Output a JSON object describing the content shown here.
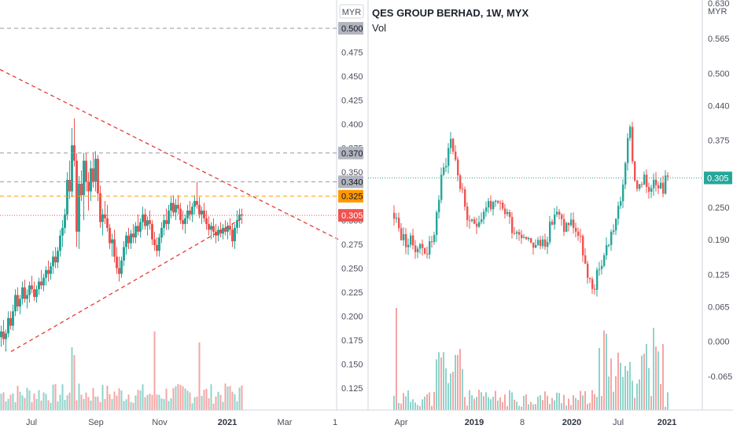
{
  "chart_data": [
    {
      "type": "candlestick",
      "panel": "left",
      "currency_badge": "MYR",
      "y_ticks": [
        "0.475",
        "0.450",
        "0.425",
        "0.400",
        "0.375",
        "0.350",
        "0.300",
        "0.275",
        "0.250",
        "0.225",
        "0.200",
        "0.175",
        "0.150",
        "0.125"
      ],
      "ylim": [
        0.1,
        0.52
      ],
      "x_ticks": [
        {
          "label": "Jul",
          "t": 40,
          "bold": false
        },
        {
          "label": "Sep",
          "t": 122,
          "bold": false
        },
        {
          "label": "Nov",
          "t": 203,
          "bold": false
        },
        {
          "label": "2021",
          "t": 289,
          "bold": true
        },
        {
          "label": "Mar",
          "t": 362,
          "bold": false
        },
        {
          "label": "1",
          "t": 426,
          "bold": false
        }
      ],
      "price_tags": [
        {
          "value": 0.5,
          "label": "0.500",
          "bg": "#b2b5be",
          "fg": "#131722",
          "line": "dashed-gray"
        },
        {
          "value": 0.37,
          "label": "0.370",
          "bg": "#b2b5be",
          "fg": "#131722",
          "line": "dashed-gray"
        },
        {
          "value": 0.34,
          "label": "0.340",
          "bg": "#b2b5be",
          "fg": "#131722",
          "line": "dashed-gray"
        },
        {
          "value": 0.325,
          "label": "0.325",
          "bg": "#ff9800",
          "fg": "#131722",
          "line": "dashed-orange"
        },
        {
          "value": 0.305,
          "label": "0.305",
          "bg": "#ef5350",
          "fg": "#ffffff",
          "line": "dotted-red"
        }
      ],
      "trendlines": [
        {
          "from": [
            0,
            0.457
          ],
          "to": [
            430,
            0.28
          ]
        },
        {
          "from": [
            14,
            0.163
          ],
          "to": [
            310,
            0.303
          ]
        }
      ],
      "candles": [
        [
          0,
          0.178,
          0.19,
          0.168,
          0.184
        ],
        [
          3,
          0.184,
          0.196,
          0.17,
          0.176
        ],
        [
          6,
          0.176,
          0.186,
          0.163,
          0.182
        ],
        [
          9,
          0.182,
          0.205,
          0.178,
          0.198
        ],
        [
          12,
          0.198,
          0.205,
          0.186,
          0.19
        ],
        [
          15,
          0.19,
          0.212,
          0.185,
          0.205
        ],
        [
          18,
          0.205,
          0.228,
          0.2,
          0.222
        ],
        [
          21,
          0.222,
          0.23,
          0.205,
          0.21
        ],
        [
          24,
          0.21,
          0.222,
          0.202,
          0.218
        ],
        [
          27,
          0.218,
          0.236,
          0.212,
          0.23
        ],
        [
          30,
          0.23,
          0.238,
          0.214,
          0.218
        ],
        [
          33,
          0.218,
          0.228,
          0.208,
          0.222
        ],
        [
          36,
          0.222,
          0.236,
          0.214,
          0.232
        ],
        [
          39,
          0.232,
          0.242,
          0.224,
          0.228
        ],
        [
          42,
          0.228,
          0.236,
          0.216,
          0.22
        ],
        [
          45,
          0.22,
          0.232,
          0.214,
          0.228
        ],
        [
          48,
          0.228,
          0.24,
          0.222,
          0.236
        ],
        [
          51,
          0.236,
          0.248,
          0.228,
          0.232
        ],
        [
          54,
          0.232,
          0.244,
          0.226,
          0.24
        ],
        [
          57,
          0.24,
          0.252,
          0.232,
          0.248
        ],
        [
          60,
          0.248,
          0.258,
          0.236,
          0.244
        ],
        [
          63,
          0.244,
          0.256,
          0.238,
          0.252
        ],
        [
          66,
          0.252,
          0.268,
          0.244,
          0.262
        ],
        [
          69,
          0.262,
          0.272,
          0.25,
          0.256
        ],
        [
          72,
          0.256,
          0.272,
          0.25,
          0.268
        ],
        [
          75,
          0.268,
          0.29,
          0.262,
          0.284
        ],
        [
          78,
          0.284,
          0.3,
          0.272,
          0.292
        ],
        [
          81,
          0.292,
          0.312,
          0.286,
          0.306
        ],
        [
          84,
          0.306,
          0.35,
          0.3,
          0.342
        ],
        [
          87,
          0.342,
          0.362,
          0.322,
          0.33
        ],
        [
          90,
          0.33,
          0.396,
          0.324,
          0.378
        ],
        [
          93,
          0.378,
          0.406,
          0.356,
          0.362
        ],
        [
          96,
          0.362,
          0.37,
          0.272,
          0.288
        ],
        [
          99,
          0.288,
          0.346,
          0.27,
          0.338
        ],
        [
          102,
          0.338,
          0.352,
          0.32,
          0.326
        ],
        [
          105,
          0.326,
          0.37,
          0.3,
          0.362
        ],
        [
          108,
          0.362,
          0.37,
          0.33,
          0.34
        ],
        [
          111,
          0.34,
          0.35,
          0.31,
          0.33
        ],
        [
          114,
          0.33,
          0.362,
          0.32,
          0.354
        ],
        [
          117,
          0.354,
          0.37,
          0.334,
          0.34
        ],
        [
          120,
          0.34,
          0.372,
          0.33,
          0.364
        ],
        [
          123,
          0.364,
          0.368,
          0.32,
          0.328
        ],
        [
          126,
          0.328,
          0.336,
          0.292,
          0.298
        ],
        [
          129,
          0.298,
          0.312,
          0.284,
          0.306
        ],
        [
          132,
          0.306,
          0.32,
          0.296,
          0.302
        ],
        [
          135,
          0.302,
          0.316,
          0.288,
          0.292
        ],
        [
          138,
          0.292,
          0.296,
          0.27,
          0.276
        ],
        [
          141,
          0.276,
          0.286,
          0.262,
          0.28
        ],
        [
          144,
          0.28,
          0.29,
          0.256,
          0.262
        ],
        [
          147,
          0.262,
          0.272,
          0.244,
          0.25
        ],
        [
          150,
          0.25,
          0.262,
          0.236,
          0.244
        ],
        [
          153,
          0.244,
          0.262,
          0.24,
          0.258
        ],
        [
          156,
          0.258,
          0.278,
          0.252,
          0.272
        ],
        [
          159,
          0.272,
          0.288,
          0.264,
          0.284
        ],
        [
          162,
          0.284,
          0.292,
          0.27,
          0.276
        ],
        [
          165,
          0.276,
          0.29,
          0.27,
          0.286
        ],
        [
          168,
          0.286,
          0.296,
          0.276,
          0.282
        ],
        [
          171,
          0.282,
          0.298,
          0.276,
          0.294
        ],
        [
          174,
          0.294,
          0.306,
          0.284,
          0.288
        ],
        [
          177,
          0.288,
          0.302,
          0.282,
          0.298
        ],
        [
          180,
          0.298,
          0.314,
          0.29,
          0.306
        ],
        [
          183,
          0.306,
          0.312,
          0.29,
          0.294
        ],
        [
          186,
          0.294,
          0.304,
          0.284,
          0.3
        ],
        [
          189,
          0.3,
          0.31,
          0.29,
          0.296
        ],
        [
          192,
          0.296,
          0.3,
          0.274,
          0.28
        ],
        [
          195,
          0.28,
          0.288,
          0.268,
          0.274
        ],
        [
          198,
          0.274,
          0.282,
          0.262,
          0.268
        ],
        [
          201,
          0.268,
          0.286,
          0.262,
          0.282
        ],
        [
          204,
          0.282,
          0.298,
          0.276,
          0.292
        ],
        [
          207,
          0.292,
          0.306,
          0.284,
          0.3
        ],
        [
          210,
          0.3,
          0.312,
          0.29,
          0.296
        ],
        [
          213,
          0.296,
          0.316,
          0.29,
          0.31
        ],
        [
          216,
          0.31,
          0.324,
          0.302,
          0.318
        ],
        [
          219,
          0.318,
          0.326,
          0.304,
          0.308
        ],
        [
          222,
          0.308,
          0.322,
          0.3,
          0.316
        ],
        [
          225,
          0.316,
          0.326,
          0.306,
          0.312
        ],
        [
          228,
          0.312,
          0.318,
          0.296,
          0.3
        ],
        [
          231,
          0.3,
          0.31,
          0.29,
          0.296
        ],
        [
          234,
          0.296,
          0.306,
          0.286,
          0.302
        ],
        [
          237,
          0.302,
          0.316,
          0.296,
          0.31
        ],
        [
          240,
          0.31,
          0.32,
          0.3,
          0.306
        ],
        [
          243,
          0.306,
          0.318,
          0.298,
          0.314
        ],
        [
          246,
          0.314,
          0.326,
          0.306,
          0.32
        ],
        [
          249,
          0.32,
          0.34,
          0.312,
          0.316
        ],
        [
          252,
          0.316,
          0.324,
          0.302,
          0.306
        ],
        [
          255,
          0.306,
          0.314,
          0.296,
          0.31
        ],
        [
          258,
          0.31,
          0.318,
          0.298,
          0.302
        ],
        [
          261,
          0.302,
          0.31,
          0.29,
          0.296
        ],
        [
          264,
          0.296,
          0.304,
          0.284,
          0.29
        ],
        [
          267,
          0.29,
          0.298,
          0.28,
          0.294
        ],
        [
          270,
          0.294,
          0.302,
          0.282,
          0.288
        ],
        [
          273,
          0.288,
          0.296,
          0.276,
          0.284
        ],
        [
          276,
          0.284,
          0.294,
          0.278,
          0.29
        ],
        [
          279,
          0.29,
          0.298,
          0.282,
          0.286
        ],
        [
          282,
          0.286,
          0.296,
          0.28,
          0.292
        ],
        [
          285,
          0.292,
          0.3,
          0.284,
          0.288
        ],
        [
          288,
          0.288,
          0.298,
          0.28,
          0.294
        ],
        [
          291,
          0.294,
          0.302,
          0.284,
          0.29
        ],
        [
          294,
          0.29,
          0.296,
          0.272,
          0.278
        ],
        [
          297,
          0.278,
          0.296,
          0.27,
          0.292
        ],
        [
          300,
          0.292,
          0.31,
          0.286,
          0.3
        ],
        [
          303,
          0.3,
          0.312,
          0.292,
          0.306
        ],
        [
          306,
          0.306,
          0.312,
          0.296,
          0.305
        ]
      ]
    },
    {
      "type": "candlestick",
      "panel": "right",
      "title": "QES GROUP BERHAD, 1W, MYX",
      "subtitle": "Vol",
      "currency_badge": "MYR",
      "y_ticks": [
        "0.565",
        "0.500",
        "0.440",
        "0.375",
        "0.250",
        "0.190",
        "0.125",
        "0.065",
        "0.000",
        "-0.065"
      ],
      "ylim": [
        -0.14,
        0.64
      ],
      "x_ticks": [
        {
          "label": "Apr",
          "t": 510,
          "bold": false
        },
        {
          "label": "2019",
          "t": 603,
          "bold": true
        },
        {
          "label": "8",
          "t": 664,
          "bold": false
        },
        {
          "label": "2020",
          "t": 727,
          "bold": true
        },
        {
          "label": "Jul",
          "t": 786,
          "bold": false
        },
        {
          "label": "2021",
          "t": 848,
          "bold": true
        }
      ],
      "price_tags": [
        {
          "value": 0.305,
          "label": "0.305",
          "bg": "#26a69a",
          "fg": "#ffffff",
          "line": "dotted-teal"
        }
      ],
      "top_partial_label": "0.630",
      "candles_summary": [
        [
          500,
          0.24
        ],
        [
          506,
          0.21
        ],
        [
          512,
          0.19
        ],
        [
          518,
          0.185
        ],
        [
          524,
          0.182
        ],
        [
          530,
          0.178
        ],
        [
          536,
          0.175
        ],
        [
          542,
          0.172
        ],
        [
          548,
          0.178
        ],
        [
          554,
          0.24
        ],
        [
          560,
          0.3
        ],
        [
          566,
          0.34
        ],
        [
          572,
          0.378
        ],
        [
          578,
          0.34
        ],
        [
          584,
          0.29
        ],
        [
          590,
          0.255
        ],
        [
          596,
          0.21
        ],
        [
          602,
          0.22
        ],
        [
          608,
          0.232
        ],
        [
          614,
          0.244
        ],
        [
          620,
          0.26
        ],
        [
          626,
          0.248
        ],
        [
          632,
          0.25
        ],
        [
          638,
          0.246
        ],
        [
          644,
          0.24
        ],
        [
          650,
          0.215
        ],
        [
          656,
          0.205
        ],
        [
          662,
          0.205
        ],
        [
          668,
          0.198
        ],
        [
          674,
          0.19
        ],
        [
          680,
          0.178
        ],
        [
          686,
          0.182
        ],
        [
          692,
          0.19
        ],
        [
          698,
          0.21
        ],
        [
          704,
          0.24
        ],
        [
          710,
          0.23
        ],
        [
          716,
          0.212
        ],
        [
          722,
          0.222
        ],
        [
          728,
          0.218
        ],
        [
          734,
          0.198
        ],
        [
          740,
          0.17
        ],
        [
          746,
          0.11
        ],
        [
          752,
          0.095
        ],
        [
          758,
          0.12
        ],
        [
          764,
          0.15
        ],
        [
          770,
          0.175
        ],
        [
          776,
          0.2
        ],
        [
          782,
          0.228
        ],
        [
          788,
          0.258
        ],
        [
          794,
          0.34
        ],
        [
          800,
          0.392
        ],
        [
          806,
          0.3
        ],
        [
          812,
          0.285
        ],
        [
          818,
          0.298
        ],
        [
          824,
          0.285
        ],
        [
          830,
          0.31
        ],
        [
          836,
          0.3
        ],
        [
          842,
          0.29
        ],
        [
          848,
          0.305
        ]
      ]
    }
  ]
}
